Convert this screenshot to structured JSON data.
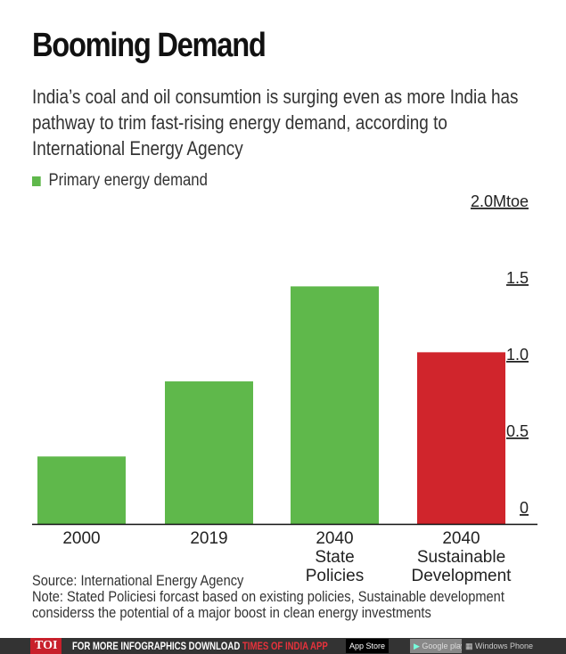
{
  "header": {
    "title": "Booming Demand",
    "subtitle": "India’s coal and oil consumtion is surging even as more India has pathway to trim fast-rising energy demand, according to International Energy Agency"
  },
  "chart_data": {
    "type": "bar",
    "title": "Booming Demand",
    "categories": [
      "2000",
      "2019",
      "2040 State Policies",
      "2040 Sustainable Development"
    ],
    "category_lines": [
      [
        "2000"
      ],
      [
        "2019"
      ],
      [
        "2040",
        "State",
        "Policies"
      ],
      [
        "2040",
        "Sustainable",
        "Development"
      ]
    ],
    "values": [
      0.44,
      0.93,
      1.55,
      1.12
    ],
    "bar_colors": [
      "#5fb84b",
      "#5fb84b",
      "#5fb84b",
      "#d0252c"
    ],
    "legend": [
      {
        "label": "Primary energy demand",
        "color": "#5fb84b"
      }
    ],
    "legend_position": "top-left",
    "yticks": [
      0,
      0.5,
      1.0,
      1.5,
      2.0
    ],
    "ytick_labels": [
      "0",
      "0.5",
      "1.0",
      "1.5",
      "2.0Mtoe"
    ],
    "ylim": [
      0,
      2.0
    ],
    "yaxis_side": "right",
    "grid": false
  },
  "source": {
    "line1": "Source: International Energy Agency",
    "line2": "Note: Stated Policiesi forcast based on existing policies, Sustainable development",
    "line3": "considerss the potential of a major boost in clean energy investments"
  },
  "footer": {
    "logo": "TOI",
    "text": "FOR MORE  INFOGRAPHICS DOWNLOAD ",
    "highlight": "TIMES OF INDIA APP",
    "app_store": "App Store",
    "google_play": "Google play",
    "windows": "Windows Phone"
  }
}
